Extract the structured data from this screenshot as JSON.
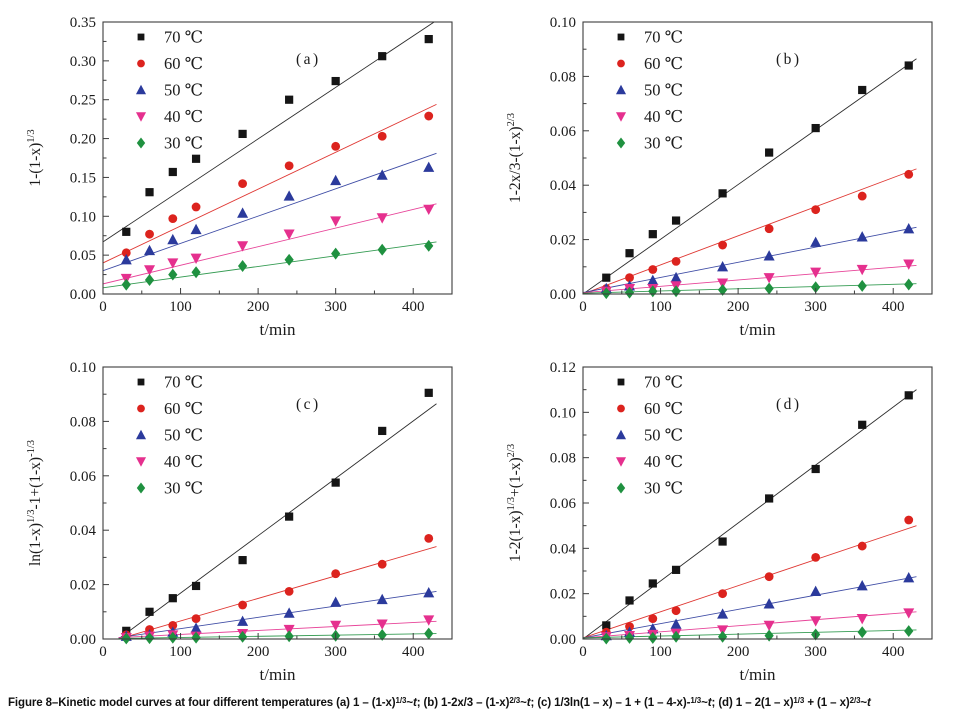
{
  "page": {
    "background": "#ffffff"
  },
  "caption": {
    "segments": [
      {
        "t": "Figure 8–Kinetic model curves at four different temperatures (a) 1 – (1-x)"
      },
      {
        "t": "1/3",
        "sup": true
      },
      {
        "t": "~"
      },
      {
        "t": "t",
        "i": true
      },
      {
        "t": "; (b) 1-2x/3 – (1-x)"
      },
      {
        "t": "2/3",
        "sup": true
      },
      {
        "t": "~"
      },
      {
        "t": "t",
        "i": true
      },
      {
        "t": "; (c) 1/3ln(1 – x) – 1 + (1 – 4-x)-"
      },
      {
        "t": "1/3",
        "sup": true
      },
      {
        "t": "~"
      },
      {
        "t": "t",
        "i": true
      },
      {
        "t": "; (d) 1 – 2(1 – x)"
      },
      {
        "t": "1/3",
        "sup": true
      },
      {
        "t": " + (1 – x)"
      },
      {
        "t": "2/3",
        "sup": true
      },
      {
        "t": "~"
      },
      {
        "t": "t",
        "i": true
      }
    ]
  },
  "chart_data": [
    {
      "id": "a",
      "type": "scatter",
      "tag": "(a)",
      "xlabel": "t/min",
      "ylabel_segments": [
        {
          "t": "1-(1-x)"
        },
        {
          "t": "1/3",
          "sup": true
        }
      ],
      "xlim": [
        0,
        450
      ],
      "ylim": [
        0,
        0.35
      ],
      "xticks": [
        0,
        100,
        200,
        300,
        400
      ],
      "yticks": [
        0,
        0.05,
        0.1,
        0.15,
        0.2,
        0.25,
        0.3,
        0.35
      ],
      "x": [
        30,
        60,
        90,
        120,
        180,
        240,
        300,
        360,
        420
      ],
      "series": [
        {
          "name": "70 ℃",
          "marker": "square",
          "color": "#151515",
          "values": [
            0.08,
            0.131,
            0.157,
            0.174,
            0.206,
            0.25,
            0.274,
            0.306,
            0.328
          ],
          "fit": {
            "x": [
              0,
              430
            ],
            "y": [
              0.067,
              0.352
            ]
          }
        },
        {
          "name": "60 ℃",
          "marker": "circle",
          "color": "#dc231e",
          "values": [
            0.053,
            0.077,
            0.097,
            0.112,
            0.142,
            0.165,
            0.19,
            0.203,
            0.229
          ],
          "fit": {
            "x": [
              0,
              430
            ],
            "y": [
              0.04,
              0.244
            ]
          }
        },
        {
          "name": "50 ℃",
          "marker": "triangle",
          "color": "#2b3a9c",
          "values": [
            0.044,
            0.056,
            0.07,
            0.083,
            0.104,
            0.126,
            0.146,
            0.153,
            0.163
          ],
          "fit": {
            "x": [
              0,
              430
            ],
            "y": [
              0.03,
              0.181
            ]
          }
        },
        {
          "name": "40 ℃",
          "marker": "triangle-down",
          "color": "#e5308e",
          "values": [
            0.02,
            0.031,
            0.04,
            0.046,
            0.062,
            0.077,
            0.094,
            0.098,
            0.109
          ],
          "fit": {
            "x": [
              0,
              430
            ],
            "y": [
              0.013,
              0.116
            ]
          }
        },
        {
          "name": "30 ℃",
          "marker": "diamond",
          "color": "#1f9140",
          "values": [
            0.012,
            0.018,
            0.025,
            0.028,
            0.036,
            0.044,
            0.052,
            0.057,
            0.062
          ],
          "fit": {
            "x": [
              0,
              430
            ],
            "y": [
              0.008,
              0.067
            ]
          }
        }
      ]
    },
    {
      "id": "b",
      "type": "scatter",
      "tag": "(b)",
      "xlabel": "t/min",
      "ylabel_segments": [
        {
          "t": "1-2x/3-(1-x)"
        },
        {
          "t": "2/3",
          "sup": true
        }
      ],
      "xlim": [
        0,
        450
      ],
      "ylim": [
        0,
        0.1
      ],
      "xticks": [
        0,
        100,
        200,
        300,
        400
      ],
      "yticks": [
        0,
        0.02,
        0.04,
        0.06,
        0.08,
        0.1
      ],
      "x": [
        30,
        60,
        90,
        120,
        180,
        240,
        300,
        360,
        420
      ],
      "series": [
        {
          "name": "70 ℃",
          "marker": "square",
          "color": "#151515",
          "values": [
            0.006,
            0.015,
            0.022,
            0.027,
            0.037,
            0.052,
            0.061,
            0.075,
            0.084
          ],
          "fit": {
            "x": [
              0,
              430
            ],
            "y": [
              0.0,
              0.0865
            ]
          }
        },
        {
          "name": "60 ℃",
          "marker": "circle",
          "color": "#dc231e",
          "values": [
            0.002,
            0.006,
            0.009,
            0.012,
            0.018,
            0.024,
            0.031,
            0.036,
            0.044
          ],
          "fit": {
            "x": [
              0,
              430
            ],
            "y": [
              0.0,
              0.046
            ]
          }
        },
        {
          "name": "50 ℃",
          "marker": "triangle",
          "color": "#2b3a9c",
          "values": [
            0.002,
            0.003,
            0.005,
            0.006,
            0.01,
            0.014,
            0.019,
            0.021,
            0.024
          ],
          "fit": {
            "x": [
              0,
              430
            ],
            "y": [
              0.0005,
              0.0245
            ]
          }
        },
        {
          "name": "40 ℃",
          "marker": "triangle-down",
          "color": "#e5308e",
          "values": [
            0.001,
            0.002,
            0.002,
            0.003,
            0.004,
            0.006,
            0.008,
            0.009,
            0.011
          ],
          "fit": {
            "x": [
              0,
              430
            ],
            "y": [
              0.0005,
              0.0105
            ]
          }
        },
        {
          "name": "30 ℃",
          "marker": "diamond",
          "color": "#1f9140",
          "values": [
            0.0003,
            0.0005,
            0.001,
            0.001,
            0.0015,
            0.002,
            0.0025,
            0.003,
            0.0035
          ],
          "fit": {
            "x": [
              0,
              430
            ],
            "y": [
              0.0003,
              0.0038
            ]
          }
        }
      ]
    },
    {
      "id": "c",
      "type": "scatter",
      "tag": "(c)",
      "xlabel": "t/min",
      "ylabel_segments": [
        {
          "t": "ln(1-x)"
        },
        {
          "t": "1/3",
          "sup": true
        },
        {
          "t": "-1+(1-x)"
        },
        {
          "t": "-1/3",
          "sup": true
        }
      ],
      "xlim": [
        0,
        450
      ],
      "ylim": [
        0,
        0.1
      ],
      "xticks": [
        0,
        100,
        200,
        300,
        400
      ],
      "yticks": [
        0,
        0.02,
        0.04,
        0.06,
        0.08,
        0.1
      ],
      "x": [
        30,
        60,
        90,
        120,
        180,
        240,
        300,
        360,
        420
      ],
      "series": [
        {
          "name": "70 ℃",
          "marker": "square",
          "color": "#151515",
          "values": [
            0.003,
            0.01,
            0.015,
            0.0195,
            0.029,
            0.045,
            0.0575,
            0.0765,
            0.0905
          ],
          "fit": {
            "x": [
              20,
              430
            ],
            "y": [
              0.0,
              0.0865
            ]
          }
        },
        {
          "name": "60 ℃",
          "marker": "circle",
          "color": "#dc231e",
          "values": [
            0.0015,
            0.0035,
            0.005,
            0.0075,
            0.0125,
            0.0175,
            0.024,
            0.0275,
            0.037
          ],
          "fit": {
            "x": [
              20,
              430
            ],
            "y": [
              0.0,
              0.034
            ]
          }
        },
        {
          "name": "50 ℃",
          "marker": "triangle",
          "color": "#2b3a9c",
          "values": [
            0.001,
            0.0015,
            0.0025,
            0.004,
            0.0065,
            0.0095,
            0.0135,
            0.0145,
            0.017
          ],
          "fit": {
            "x": [
              20,
              430
            ],
            "y": [
              0.0005,
              0.0175
            ]
          }
        },
        {
          "name": "40 ℃",
          "marker": "triangle-down",
          "color": "#e5308e",
          "values": [
            0.0005,
            0.001,
            0.0015,
            0.001,
            0.002,
            0.0035,
            0.005,
            0.0055,
            0.007
          ],
          "fit": {
            "x": [
              20,
              430
            ],
            "y": [
              0.0005,
              0.0065
            ]
          }
        },
        {
          "name": "30 ℃",
          "marker": "diamond",
          "color": "#1f9140",
          "values": [
            0.0002,
            0.0003,
            0.0005,
            0.0005,
            0.0008,
            0.001,
            0.0012,
            0.0015,
            0.002
          ],
          "fit": {
            "x": [
              20,
              430
            ],
            "y": [
              0.0002,
              0.002
            ]
          }
        }
      ]
    },
    {
      "id": "d",
      "type": "scatter",
      "tag": "(d)",
      "xlabel": "t/min",
      "ylabel_segments": [
        {
          "t": "1-2(1-x)"
        },
        {
          "t": "1/3",
          "sup": true
        },
        {
          "t": "+(1-x)"
        },
        {
          "t": "2/3",
          "sup": true
        }
      ],
      "xlim": [
        0,
        450
      ],
      "ylim": [
        0,
        0.12
      ],
      "xticks": [
        0,
        100,
        200,
        300,
        400
      ],
      "yticks": [
        0,
        0.02,
        0.04,
        0.06,
        0.08,
        0.1,
        0.12
      ],
      "x": [
        30,
        60,
        90,
        120,
        180,
        240,
        300,
        360,
        420
      ],
      "series": [
        {
          "name": "70 ℃",
          "marker": "square",
          "color": "#151515",
          "values": [
            0.006,
            0.017,
            0.0245,
            0.0305,
            0.043,
            0.062,
            0.075,
            0.0945,
            0.1075
          ],
          "fit": {
            "x": [
              0,
              430
            ],
            "y": [
              0.0,
              0.11
            ]
          }
        },
        {
          "name": "60 ℃",
          "marker": "circle",
          "color": "#dc231e",
          "values": [
            0.003,
            0.0055,
            0.009,
            0.0125,
            0.02,
            0.0275,
            0.036,
            0.041,
            0.0525
          ],
          "fit": {
            "x": [
              0,
              430
            ],
            "y": [
              0.0005,
              0.05
            ]
          }
        },
        {
          "name": "50 ℃",
          "marker": "triangle",
          "color": "#2b3a9c",
          "values": [
            0.0015,
            0.003,
            0.0045,
            0.0065,
            0.011,
            0.0155,
            0.021,
            0.0235,
            0.027
          ],
          "fit": {
            "x": [
              0,
              430
            ],
            "y": [
              0.0005,
              0.0275
            ]
          }
        },
        {
          "name": "40 ℃",
          "marker": "triangle-down",
          "color": "#e5308e",
          "values": [
            0.001,
            0.0015,
            0.002,
            0.0025,
            0.004,
            0.006,
            0.008,
            0.009,
            0.0115
          ],
          "fit": {
            "x": [
              0,
              430
            ],
            "y": [
              0.0005,
              0.012
            ]
          }
        },
        {
          "name": "30 ℃",
          "marker": "diamond",
          "color": "#1f9140",
          "values": [
            0.0002,
            0.0005,
            0.0005,
            0.001,
            0.001,
            0.0015,
            0.002,
            0.003,
            0.0035
          ],
          "fit": {
            "x": [
              0,
              430
            ],
            "y": [
              0.0005,
              0.004
            ]
          }
        }
      ]
    }
  ]
}
